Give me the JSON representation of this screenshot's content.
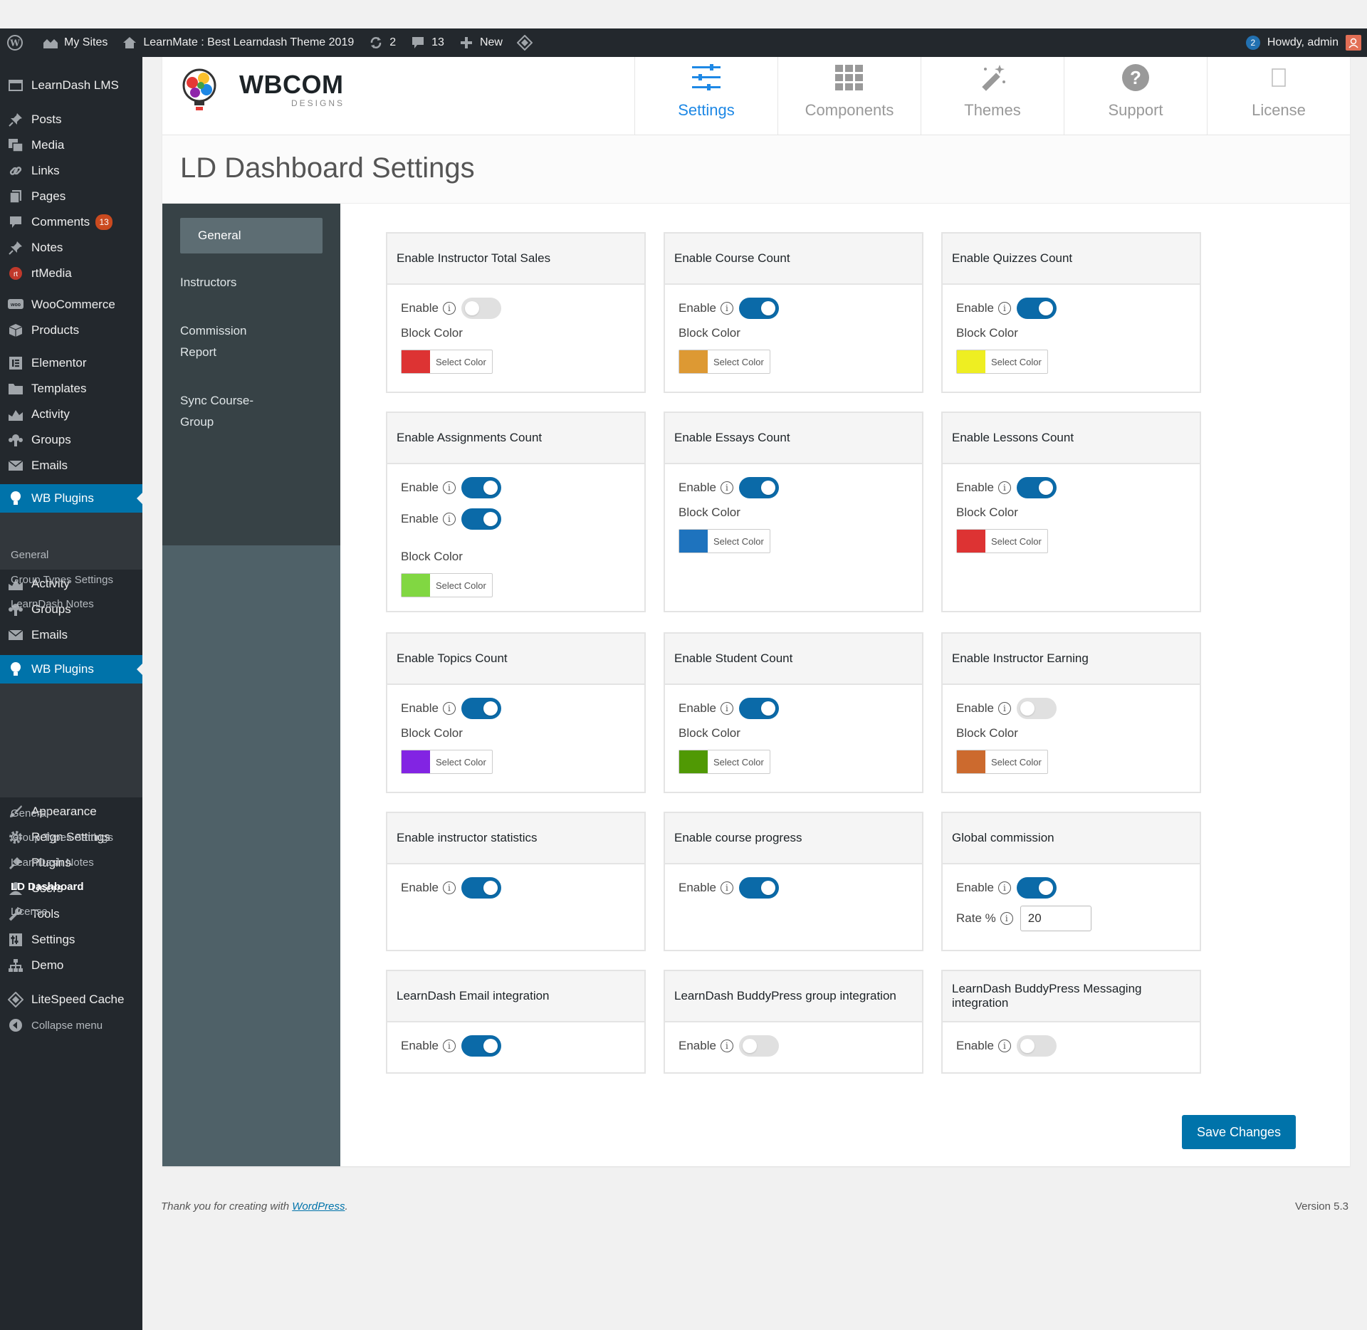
{
  "adminbar": {
    "my_sites": "My Sites",
    "site_name": "LearnMate : Best Learndash Theme 2019",
    "updates": "2",
    "comments": "13",
    "new": "New",
    "notifications": "2",
    "howdy": "Howdy, admin"
  },
  "sidebar": {
    "items": [
      {
        "label": "LearnDash LMS",
        "icon": "learndash-icon"
      },
      {
        "label": "Posts",
        "icon": "pin-icon"
      },
      {
        "label": "Media",
        "icon": "media-icon"
      },
      {
        "label": "Links",
        "icon": "link-icon"
      },
      {
        "label": "Pages",
        "icon": "pages-icon"
      },
      {
        "label": "Comments",
        "icon": "comment-icon",
        "count": "13"
      },
      {
        "label": "Notes",
        "icon": "pin-icon"
      },
      {
        "label": "rtMedia",
        "icon": "rtmedia-icon"
      },
      {
        "label": "WooCommerce",
        "icon": "woo-icon"
      },
      {
        "label": "Products",
        "icon": "box-icon"
      },
      {
        "label": "Elementor",
        "icon": "elementor-icon"
      },
      {
        "label": "Templates",
        "icon": "folder-icon"
      },
      {
        "label": "Activity",
        "icon": "activity-icon"
      },
      {
        "label": "Groups",
        "icon": "groups-icon"
      },
      {
        "label": "Emails",
        "icon": "email-icon"
      },
      {
        "label": "WB Plugins",
        "icon": "bulb-icon"
      },
      {
        "label": "Activity",
        "icon": "activity-icon"
      },
      {
        "label": "Groups",
        "icon": "groups-icon"
      },
      {
        "label": "Emails",
        "icon": "email-icon"
      },
      {
        "label": "WB Plugins",
        "icon": "bulb-icon"
      },
      {
        "label": "Appearance",
        "icon": "brush-icon"
      },
      {
        "label": "Reign Settings",
        "icon": "gear-icon"
      },
      {
        "label": "Plugins",
        "icon": "plug-icon"
      },
      {
        "label": "Users",
        "icon": "user-icon"
      },
      {
        "label": "Tools",
        "icon": "wrench-icon"
      },
      {
        "label": "Settings",
        "icon": "settings-icon"
      },
      {
        "label": "Demo",
        "icon": "sitemap-icon"
      },
      {
        "label": "LiteSpeed Cache",
        "icon": "diamond-icon"
      },
      {
        "label": "Collapse menu",
        "icon": "collapse-icon"
      }
    ],
    "submenu1": [
      "General",
      "Group Types Settings",
      "LearnDash Notes"
    ],
    "submenu2": [
      "General",
      "Group Types Settings",
      "LearnDash Notes",
      "LD Dashboard",
      "License"
    ]
  },
  "header": {
    "logo_text": "WBCOM",
    "logo_sub": "DESIGNS",
    "tabs": [
      {
        "label": "Settings",
        "icon": "sliders-icon"
      },
      {
        "label": "Components",
        "icon": "grid-icon"
      },
      {
        "label": "Themes",
        "icon": "wand-icon"
      },
      {
        "label": "Support",
        "icon": "question-icon"
      },
      {
        "label": "License",
        "icon": "license-icon"
      }
    ]
  },
  "page_title": "LD Dashboard Settings",
  "leftnav": [
    "General",
    "Instructors",
    "Commission Report",
    "Sync Course-Group"
  ],
  "labels": {
    "enable": "Enable",
    "block_color": "Block Color",
    "select_color": "Select Color",
    "rate": "Rate %",
    "info": "i"
  },
  "cards": [
    {
      "title": "Enable Instructor Total Sales",
      "toggles": [
        false
      ],
      "color": "#dd3333"
    },
    {
      "title": "Enable Course Count",
      "toggles": [
        true
      ],
      "color": "#dd9933"
    },
    {
      "title": "Enable Quizzes Count",
      "toggles": [
        true
      ],
      "color": "#eeee22"
    },
    {
      "title": "Enable Assignments Count",
      "toggles": [
        true,
        true
      ],
      "color": "#81d742"
    },
    {
      "title": "Enable Essays Count",
      "toggles": [
        true
      ],
      "color": "#1e73be"
    },
    {
      "title": "Enable Lessons Count",
      "toggles": [
        true
      ],
      "color": "#dd3333"
    },
    {
      "title": "Enable Topics Count",
      "toggles": [
        true
      ],
      "color": "#8224e3"
    },
    {
      "title": "Enable Student Count",
      "toggles": [
        true
      ],
      "color": "#509904"
    },
    {
      "title": "Enable Instructor Earning",
      "toggles": [
        false
      ],
      "color": "#cc6a2e"
    },
    {
      "title": "Enable instructor statistics",
      "toggles": [
        true
      ]
    },
    {
      "title": "Enable course progress",
      "toggles": [
        true
      ]
    },
    {
      "title": "Global commission",
      "toggles": [
        true
      ],
      "rate": "20"
    },
    {
      "title": "LearnDash Email integration",
      "toggles": [
        true
      ]
    },
    {
      "title": "LearnDash BuddyPress group integration",
      "toggles": [
        false
      ]
    },
    {
      "title": "LearnDash BuddyPress Messaging integration",
      "toggles": [
        false
      ]
    }
  ],
  "save_label": "Save Changes",
  "footer": {
    "thanks": "Thank you for creating with ",
    "wp_link": "WordPress",
    "period": ".",
    "version": "Version 5.3"
  }
}
